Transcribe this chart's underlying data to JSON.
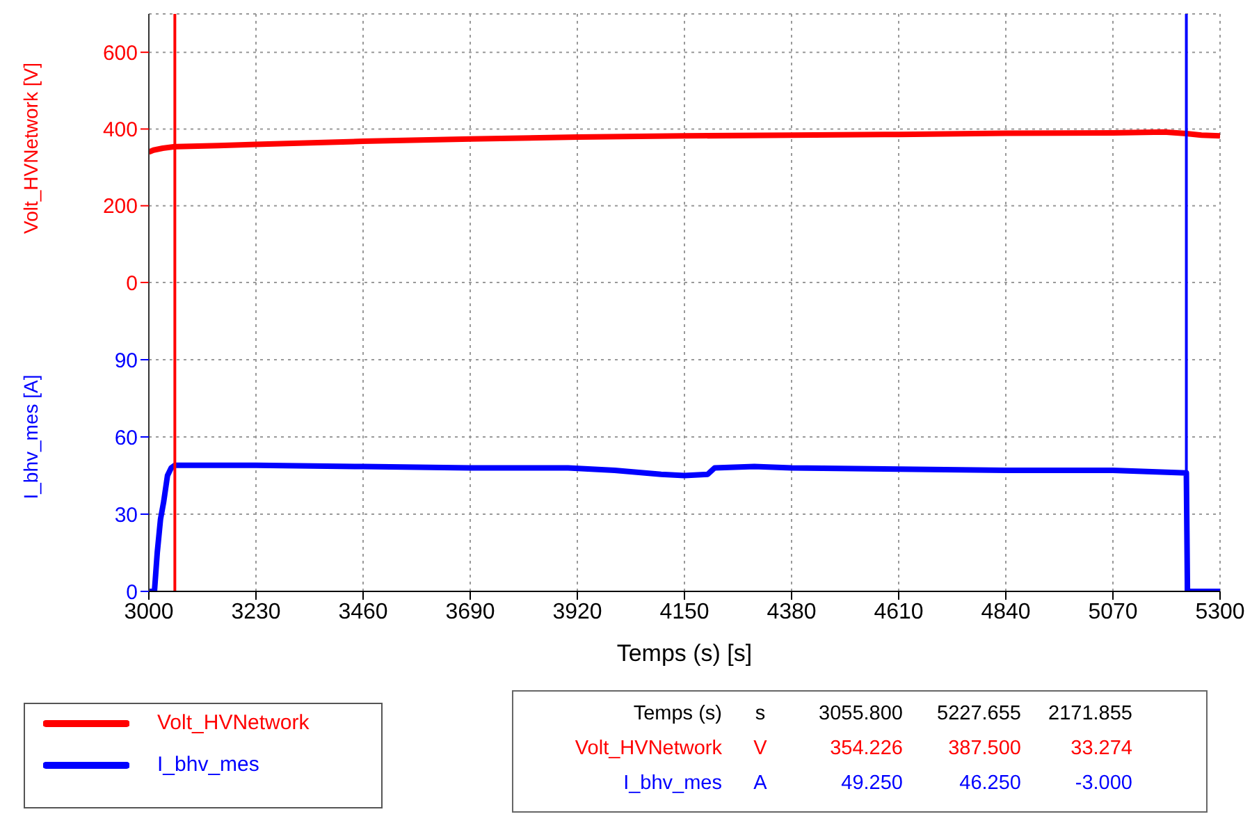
{
  "chart_data": [
    {
      "type": "line",
      "ylabel": "Volt_HVNetwork   [V]",
      "xlim": [
        3000,
        5300
      ],
      "xticks": [
        3000,
        3230,
        3460,
        3690,
        3920,
        4150,
        4380,
        4610,
        4840,
        5070,
        5300
      ],
      "ylim": [
        0,
        700
      ],
      "yticks": [
        0,
        200,
        400,
        600
      ],
      "tick_labels": "y",
      "grid": true,
      "legend": "bottom left",
      "series": [
        {
          "name": "Volt_HVNetwork",
          "color": "#ff0000",
          "x": [
            3000,
            3010,
            3030,
            3055.8,
            3150,
            3230,
            3460,
            3690,
            3920,
            4150,
            4380,
            4610,
            4840,
            5070,
            5180,
            5227.655,
            5260,
            5300
          ],
          "values": [
            340,
            345,
            350,
            354,
            357,
            360,
            368,
            374,
            379,
            382,
            384,
            386,
            389,
            390,
            392,
            388,
            384,
            382
          ]
        }
      ],
      "ref_lines": [
        {
          "axis": "x",
          "value": 3055.8,
          "color": "#ff0000"
        },
        {
          "axis": "x",
          "value": 5227.655,
          "color": "#0000ff"
        }
      ]
    },
    {
      "type": "line",
      "xlabel": "Temps (s) [s]",
      "ylabel": "I_bhv_mes   [A]",
      "xlim": [
        3000,
        5300
      ],
      "xticks": [
        3000,
        3230,
        3460,
        3690,
        3920,
        4150,
        4380,
        4610,
        4840,
        5070,
        5300
      ],
      "ylim": [
        0,
        120
      ],
      "yticks": [
        0,
        30,
        60,
        90
      ],
      "grid": true,
      "legend": "bottom left",
      "series": [
        {
          "name": "I_bhv_mes",
          "color": "#0000ff",
          "x": [
            3000,
            3012,
            3018,
            3025,
            3032,
            3040,
            3048,
            3055.8,
            3230,
            3460,
            3690,
            3900,
            4000,
            4100,
            4150,
            4200,
            4215,
            4300,
            4380,
            4610,
            4840,
            5070,
            5227.655,
            5230,
            5300
          ],
          "values": [
            0,
            0,
            15,
            28,
            35,
            45,
            48,
            49,
            49,
            48.5,
            48,
            48,
            47,
            45.5,
            45,
            45.5,
            48,
            48.5,
            48,
            47.5,
            47,
            47,
            46,
            0,
            0
          ]
        }
      ],
      "ref_lines": [
        {
          "axis": "x",
          "value": 3055.8,
          "color": "#ff0000"
        },
        {
          "axis": "x",
          "value": 5227.655,
          "color": "#0000ff"
        }
      ]
    },
    {
      "type": "other",
      "annotations": [
        "Temps (s)",
        "s",
        "3055.800",
        "5227.655",
        "2171.855",
        "Volt_HVNetwork",
        "V",
        "354.226",
        "387.500",
        "33.274",
        "I_bhv_mes",
        "A",
        "49.250",
        "46.250",
        "-3.000"
      ]
    }
  ]
}
